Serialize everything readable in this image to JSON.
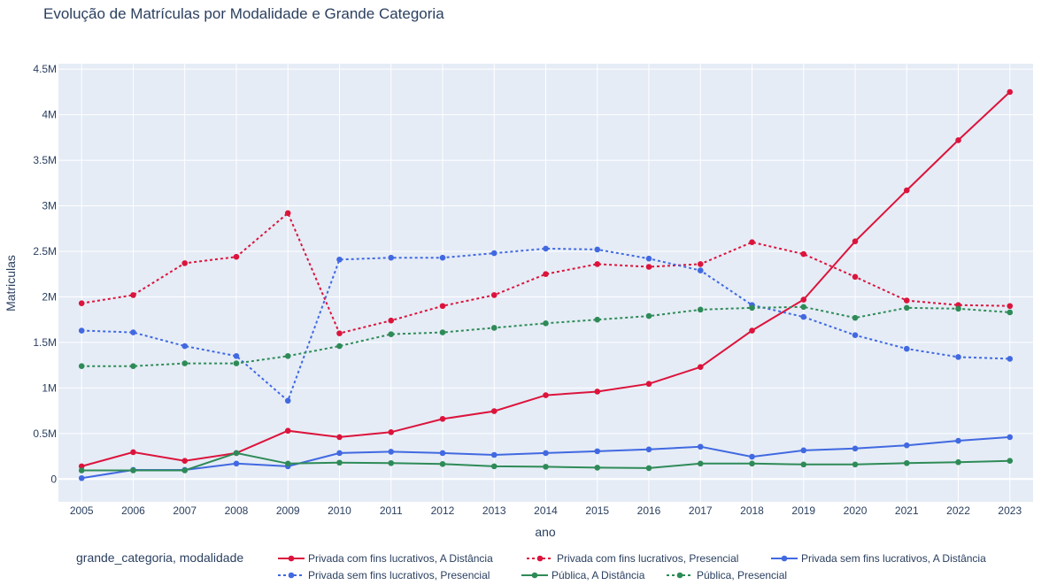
{
  "chart_data": {
    "type": "line",
    "title": "Evolução de Matrículas por Modalidade e Grande Categoria",
    "xlabel": "ano",
    "ylabel": "Matriculas",
    "legend_title": "grande_categoria, modalidade",
    "legend_position": "bottom",
    "grid": true,
    "background": "#e5ecf6",
    "x": [
      2005,
      2006,
      2007,
      2008,
      2009,
      2010,
      2011,
      2012,
      2013,
      2014,
      2015,
      2016,
      2017,
      2018,
      2019,
      2020,
      2021,
      2022,
      2023
    ],
    "xlim": [
      2004.55,
      2023.45
    ],
    "ylim": [
      -250000,
      4560000
    ],
    "yticks": [
      0,
      500000,
      1000000,
      1500000,
      2000000,
      2500000,
      3000000,
      3500000,
      4000000,
      4500000
    ],
    "ytick_labels": [
      "0",
      "0.5M",
      "1M",
      "1.5M",
      "2M",
      "2.5M",
      "3M",
      "3.5M",
      "4M",
      "4.5M"
    ],
    "series": [
      {
        "name": "Privada com fins lucrativos, A Distância",
        "color": "#dc143c",
        "dash": "solid",
        "values": [
          140000,
          295000,
          200000,
          285000,
          530000,
          460000,
          515000,
          660000,
          745000,
          920000,
          960000,
          1045000,
          1230000,
          1630000,
          1970000,
          2610000,
          3170000,
          3720000,
          4250000
        ]
      },
      {
        "name": "Privada com fins lucrativos, Presencial",
        "color": "#dc143c",
        "dash": "dot",
        "values": [
          1930000,
          2020000,
          2370000,
          2440000,
          2920000,
          1600000,
          1740000,
          1900000,
          2020000,
          2250000,
          2360000,
          2330000,
          2360000,
          2600000,
          2470000,
          2220000,
          1960000,
          1910000,
          1900000
        ]
      },
      {
        "name": "Privada sem fins lucrativos, A Distância",
        "color": "#4169e1",
        "dash": "solid",
        "values": [
          10000,
          100000,
          100000,
          170000,
          140000,
          285000,
          300000,
          285000,
          265000,
          285000,
          305000,
          325000,
          355000,
          245000,
          315000,
          335000,
          370000,
          420000,
          460000
        ]
      },
      {
        "name": "Privada sem fins lucrativos, Presencial",
        "color": "#4169e1",
        "dash": "dot",
        "values": [
          1630000,
          1610000,
          1460000,
          1350000,
          860000,
          2410000,
          2430000,
          2430000,
          2480000,
          2530000,
          2520000,
          2420000,
          2290000,
          1910000,
          1780000,
          1580000,
          1430000,
          1340000,
          1320000
        ]
      },
      {
        "name": "Pública, A Distância",
        "color": "#2e8b57",
        "dash": "solid",
        "values": [
          95000,
          95000,
          95000,
          285000,
          170000,
          180000,
          175000,
          165000,
          140000,
          135000,
          125000,
          120000,
          170000,
          170000,
          160000,
          160000,
          175000,
          185000,
          200000
        ]
      },
      {
        "name": "Pública, Presencial",
        "color": "#2e8b57",
        "dash": "dot",
        "values": [
          1240000,
          1240000,
          1270000,
          1270000,
          1350000,
          1460000,
          1590000,
          1610000,
          1660000,
          1710000,
          1750000,
          1790000,
          1860000,
          1880000,
          1890000,
          1770000,
          1880000,
          1870000,
          1830000
        ]
      }
    ]
  }
}
